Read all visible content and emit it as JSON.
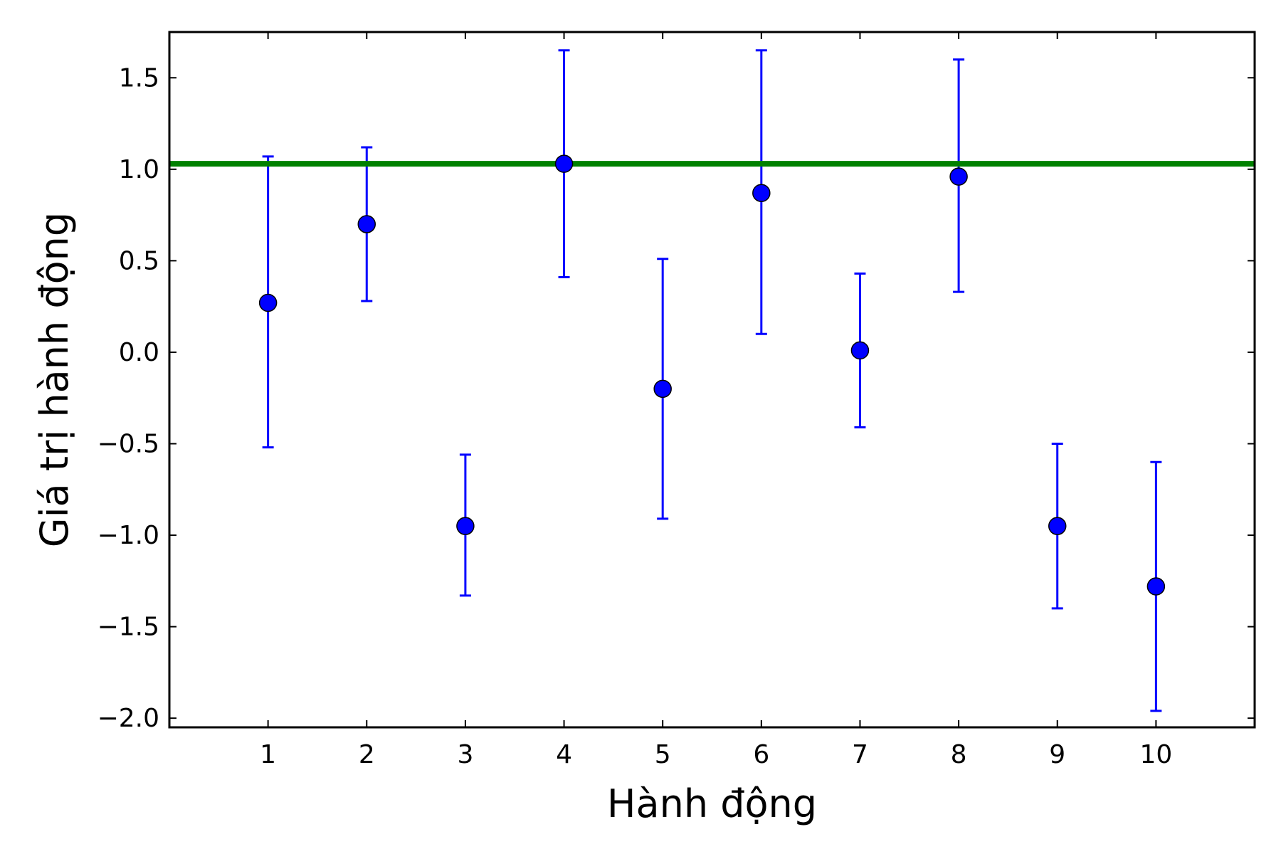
{
  "chart_data": {
    "type": "scatter",
    "title": "",
    "xlabel": "Hành động",
    "ylabel": "Giá trị hành động",
    "xlim": [
      0,
      11
    ],
    "ylim": [
      -2.05,
      1.75
    ],
    "xticks": [
      1,
      2,
      3,
      4,
      5,
      6,
      7,
      8,
      9,
      10
    ],
    "xtick_labels": [
      "1",
      "2",
      "3",
      "4",
      "5",
      "6",
      "7",
      "8",
      "9",
      "10"
    ],
    "yticks": [
      1.5,
      1.0,
      0.5,
      0.0,
      -0.5,
      -1.0,
      -1.5,
      -2.0
    ],
    "ytick_labels": [
      "1.5",
      "1.0",
      "0.5",
      "0.0",
      "−0.5",
      "−1.0",
      "−1.5",
      "−2.0"
    ],
    "grid": false,
    "points": [
      {
        "x": 1,
        "y": 0.27,
        "err_low": -0.52,
        "err_high": 1.07
      },
      {
        "x": 2,
        "y": 0.7,
        "err_low": 0.28,
        "err_high": 1.12
      },
      {
        "x": 3,
        "y": -0.95,
        "err_low": -1.33,
        "err_high": -0.56
      },
      {
        "x": 4,
        "y": 1.03,
        "err_low": 0.41,
        "err_high": 1.65
      },
      {
        "x": 5,
        "y": -0.2,
        "err_low": -0.91,
        "err_high": 0.51
      },
      {
        "x": 6,
        "y": 0.87,
        "err_low": 0.1,
        "err_high": 1.65
      },
      {
        "x": 7,
        "y": 0.01,
        "err_low": -0.41,
        "err_high": 0.43
      },
      {
        "x": 8,
        "y": 0.96,
        "err_low": 0.33,
        "err_high": 1.6
      },
      {
        "x": 9,
        "y": -0.95,
        "err_low": -1.4,
        "err_high": -0.5
      },
      {
        "x": 10,
        "y": -1.28,
        "err_low": -1.96,
        "err_high": -0.6
      }
    ],
    "reference_line": {
      "y": 1.03
    },
    "colors": {
      "points": "#0000ff",
      "errorbars": "#0000ff",
      "reference_line": "#008000",
      "axes": "#000000"
    }
  }
}
